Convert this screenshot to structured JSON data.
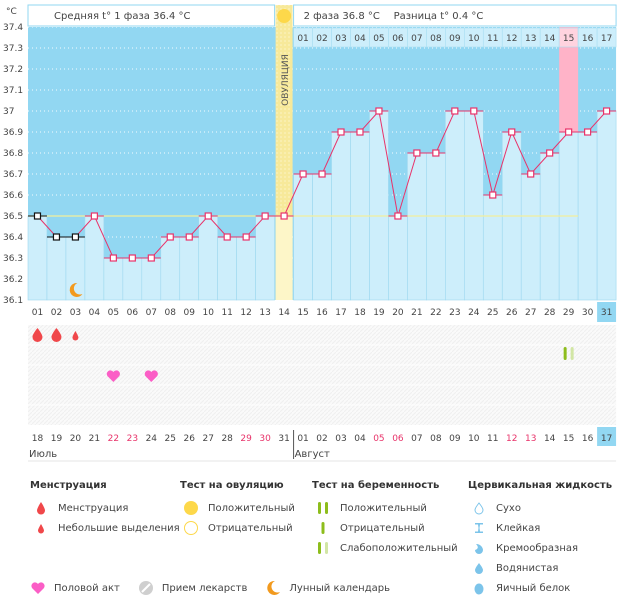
{
  "chart_data": {
    "type": "line",
    "title": "",
    "unit_label": "°C",
    "ylim": [
      36.1,
      37.4
    ],
    "yticks": [
      "37.4",
      "37.3",
      "37.2",
      "37.1",
      "37",
      "36.9",
      "36.8",
      "36.7",
      "36.6",
      "36.5",
      "36.4",
      "36.3",
      "36.2",
      "36.1"
    ],
    "cycle_days": [
      "01",
      "02",
      "03",
      "04",
      "05",
      "06",
      "07",
      "08",
      "09",
      "10",
      "11",
      "12",
      "13",
      "14",
      "15",
      "16",
      "17",
      "18",
      "19",
      "20",
      "21",
      "22",
      "23",
      "24",
      "25",
      "26",
      "27",
      "28",
      "29",
      "30",
      "31"
    ],
    "temperatures": [
      36.5,
      36.4,
      36.4,
      36.5,
      36.3,
      36.3,
      36.3,
      36.4,
      36.4,
      36.5,
      36.4,
      36.4,
      36.5,
      36.5,
      36.7,
      36.7,
      36.9,
      36.9,
      37.0,
      36.5,
      36.8,
      36.8,
      37.0,
      37.0,
      36.6,
      36.9,
      36.7,
      36.8,
      36.9,
      36.9,
      37.0
    ],
    "coverline": 36.5,
    "ovulation_day": 14,
    "ovulation_label": "ОВУЛЯЦИЯ",
    "highlight_day": 29,
    "current_day": 31,
    "phase2_day_numbers": [
      "01",
      "02",
      "03",
      "04",
      "05",
      "06",
      "07",
      "08",
      "09",
      "10",
      "11",
      "12",
      "13",
      "14",
      "15",
      "16",
      "17"
    ],
    "phase2_highlight_index": 15,
    "header": {
      "phase1": "Средняя t° 1 фаза 36.4 °C",
      "phase2": "2 фаза 36.8 °C",
      "difference": "Разница t° 0.4 °C"
    },
    "calendar_dates": [
      "18",
      "19",
      "20",
      "21",
      "22",
      "23",
      "24",
      "25",
      "26",
      "27",
      "28",
      "29",
      "30",
      "31",
      "01",
      "02",
      "03",
      "04",
      "05",
      "06",
      "07",
      "08",
      "09",
      "10",
      "11",
      "12",
      "13",
      "14",
      "15",
      "16",
      "17"
    ],
    "weekend_indices": [
      5,
      6,
      12,
      13,
      19,
      20,
      26,
      27
    ],
    "months": [
      {
        "label": "Июль",
        "start_index": 1
      },
      {
        "label": "Август",
        "start_index": 15
      }
    ],
    "events": {
      "menstruation": [
        1,
        2
      ],
      "spotting": [
        3
      ],
      "intercourse": [
        5,
        7
      ],
      "lunar": [
        3
      ],
      "pregnancy_test_weak_positive": [
        29
      ]
    },
    "colors": {
      "sky": "#92d7f2",
      "bar": "#cdeefb",
      "line": "#e8336a",
      "ovulation": "#f7e99a",
      "highlight": "#ffb3c8",
      "coverline": "#f3ee9c",
      "today": "#92d7f2"
    }
  },
  "legend": {
    "menstruation": {
      "title": "Менструация",
      "items": [
        "Менструация",
        "Небольшие выделения"
      ]
    },
    "ovulation_test": {
      "title": "Тест на овуляцию",
      "items": [
        "Положительный",
        "Отрицательный"
      ]
    },
    "pregnancy_test": {
      "title": "Тест на беременность",
      "items": [
        "Положительный",
        "Отрицательный",
        "Слабоположительный"
      ]
    },
    "cervical_fluid": {
      "title": "Цервикальная жидкость",
      "items": [
        "Сухо",
        "Клейкая",
        "Кремообразная",
        "Водянистая",
        "Яичный белок"
      ]
    },
    "other": [
      "Половой акт",
      "Прием лекарств",
      "Лунный календарь"
    ]
  }
}
